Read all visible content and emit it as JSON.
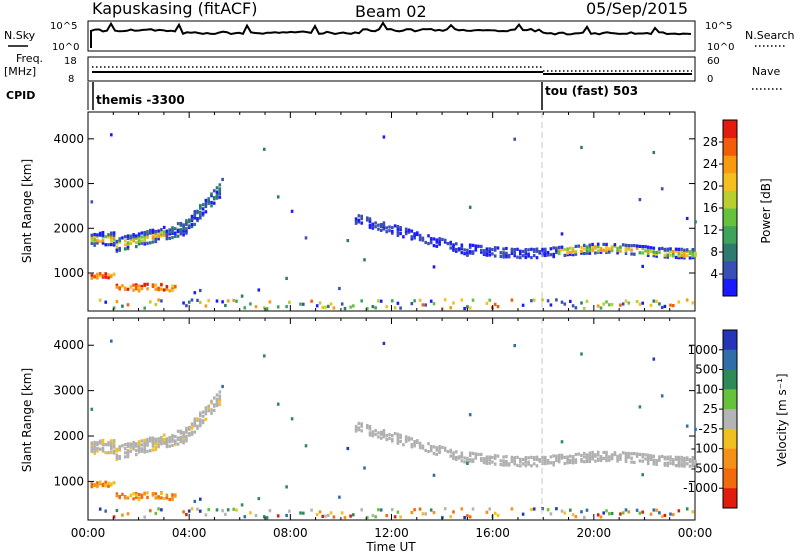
{
  "header": {
    "station": "Kapuskasing (fitACF)",
    "beam": "Beam 02",
    "date": "05/Sep/2015"
  },
  "summary": {
    "nsky_label": "N.Sky",
    "nsky_ticks": [
      "10^5",
      "10^0"
    ],
    "nsearch_label": "N.Search",
    "nsearch_ticks": [
      "10^5",
      "10^0"
    ],
    "freq_label": "Freq.",
    "freq_unit": "[MHz]",
    "freq_ticks": [
      "18",
      "8"
    ],
    "nave_label": "Nave",
    "nave_ticks": [
      "60",
      "0"
    ],
    "cpid_label": "CPID",
    "cpid_segments": [
      {
        "name": "themis -3300",
        "start_hour": 0
      },
      {
        "name": "tou (fast) 503",
        "start_hour": 18
      }
    ]
  },
  "colors": {
    "scatter_ground": "#b0b0b0",
    "mode_change_line": "#c8c8c8"
  },
  "chart_data": [
    {
      "type": "heatmap",
      "name": "power",
      "ylabel": "Slant Range [km]",
      "y_ticks": [
        "1000",
        "2000",
        "3000",
        "4000"
      ],
      "ylim": [
        150,
        4600
      ],
      "xlim": [
        0,
        24
      ],
      "colorbar_label": "Power [dB]",
      "colorbar_ticks": [
        "4",
        "8",
        "12",
        "16",
        "20",
        "24",
        "28"
      ],
      "colorbar_colors": [
        "#1a1aff",
        "#3a4fb4",
        "#2e7a6e",
        "#3fa45a",
        "#66c13c",
        "#b8cf2e",
        "#f4c020",
        "#f79a10",
        "#f25d0a",
        "#e21c0c"
      ],
      "mode_change_hour": 18
    },
    {
      "type": "heatmap",
      "name": "velocity",
      "ylabel": "Slant Range [km]",
      "y_ticks": [
        "1000",
        "2000",
        "3000",
        "4000"
      ],
      "ylim": [
        150,
        4600
      ],
      "xlim": [
        0,
        24
      ],
      "xlabel": "Time UT",
      "x_ticks": [
        "00:00",
        "04:00",
        "08:00",
        "12:00",
        "16:00",
        "20:00",
        "00:00"
      ],
      "colorbar_label": "Velocity [m s⁻¹]",
      "colorbar_ticks": [
        "1000",
        "500",
        "100",
        "25",
        "-25",
        "-100",
        "-500",
        "-1000"
      ],
      "colorbar_colors": [
        "#2535b8",
        "#2f6ea8",
        "#2f8a5a",
        "#66c13c",
        "#b4b4b4",
        "#f0c020",
        "#f59018",
        "#f26a0e",
        "#e21c0c"
      ],
      "mode_change_hour": 18
    }
  ]
}
